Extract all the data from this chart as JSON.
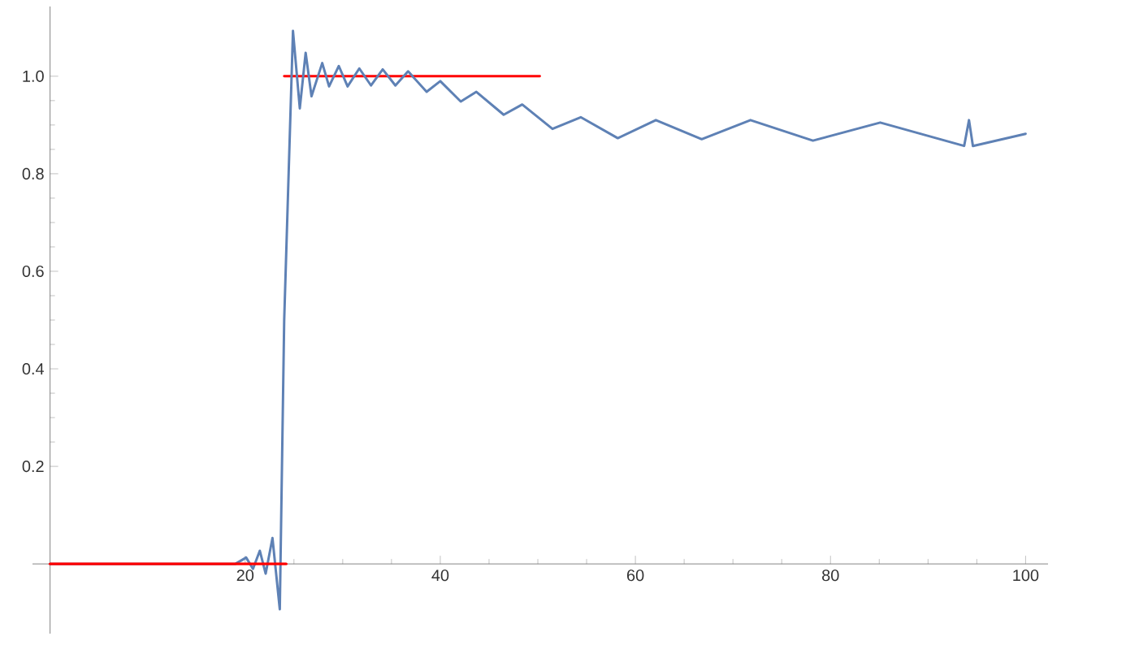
{
  "chart_data": {
    "type": "line",
    "xlim": [
      -1.8,
      102.3
    ],
    "ylim": [
      -0.143,
      1.143
    ],
    "xticks": [
      20,
      40,
      60,
      80,
      100
    ],
    "yticks": [
      0.2,
      0.4,
      0.6,
      0.8,
      {
        "value": 1,
        "label": "1.0"
      }
    ],
    "grid": false,
    "marker": "none",
    "line_style": "solid",
    "series": [
      {
        "color": "#ff0000",
        "x": [
          24,
          50.2
        ],
        "values": [
          1,
          1
        ]
      },
      {
        "color": "#5e81b5",
        "x": [
          0,
          19.0,
          20.1,
          20.8,
          21.5,
          22.1,
          22.8,
          23.55,
          24.0,
          24.9,
          25.6,
          26.2,
          26.8,
          27.9,
          28.6,
          29.6,
          30.5,
          31.7,
          32.9,
          34.1,
          35.4,
          36.7,
          38.6,
          40.0,
          42.1,
          43.7,
          46.5,
          48.4,
          51.5,
          54.4,
          58.2,
          62.1,
          66.8,
          71.8,
          78.2,
          85.1,
          93.7,
          94.2,
          94.6,
          100
        ],
        "values": [
          0,
          0,
          0.013,
          -0.01,
          0.027,
          -0.02,
          0.053,
          -0.093,
          0.5,
          1.093,
          0.934,
          1.048,
          0.959,
          1.027,
          0.979,
          1.021,
          0.979,
          1.016,
          0.981,
          1.014,
          0.981,
          1.01,
          0.968,
          0.99,
          0.948,
          0.968,
          0.921,
          0.942,
          0.892,
          0.916,
          0.873,
          0.91,
          0.871,
          0.91,
          0.868,
          0.905,
          0.857,
          0.91,
          0.857,
          0.882
        ]
      },
      {
        "color": "#ff0000",
        "x": [
          0,
          24.2
        ],
        "values": [
          0,
          0
        ]
      }
    ]
  }
}
